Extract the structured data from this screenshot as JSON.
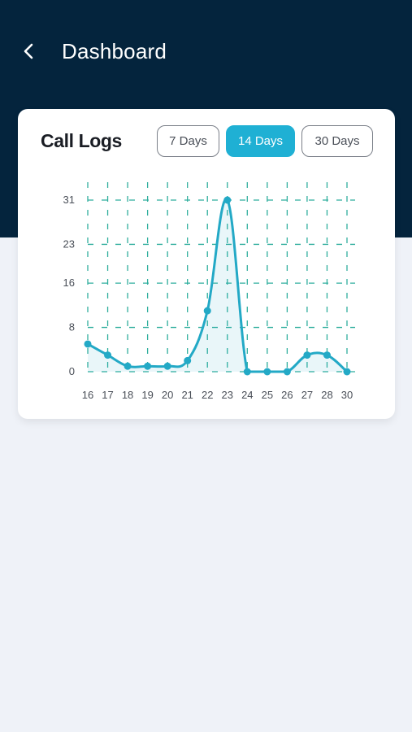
{
  "header": {
    "title": "Dashboard",
    "back_icon": "chevron-left-icon"
  },
  "card": {
    "title": "Call Logs",
    "ranges": [
      {
        "label": "7 Days",
        "selected": false
      },
      {
        "label": "14 Days",
        "selected": true
      },
      {
        "label": "30 Days",
        "selected": false
      }
    ]
  },
  "colors": {
    "header_bg": "#04243d",
    "accent": "#1fb0d4",
    "line": "#23a9c6",
    "grid": "#2fae9d"
  },
  "chart_data": {
    "type": "line",
    "x": [
      "16",
      "17",
      "18",
      "19",
      "20",
      "21",
      "22",
      "23",
      "24",
      "25",
      "26",
      "27",
      "28",
      "30"
    ],
    "values": [
      5,
      3,
      1,
      1,
      1,
      2,
      11,
      31,
      0,
      0,
      0,
      3,
      3,
      0
    ],
    "yticks": [
      0,
      8,
      16,
      23,
      31
    ],
    "ylim": [
      0,
      31
    ],
    "grid": true,
    "area_fill": true,
    "title": "",
    "xlabel": "",
    "ylabel": ""
  }
}
